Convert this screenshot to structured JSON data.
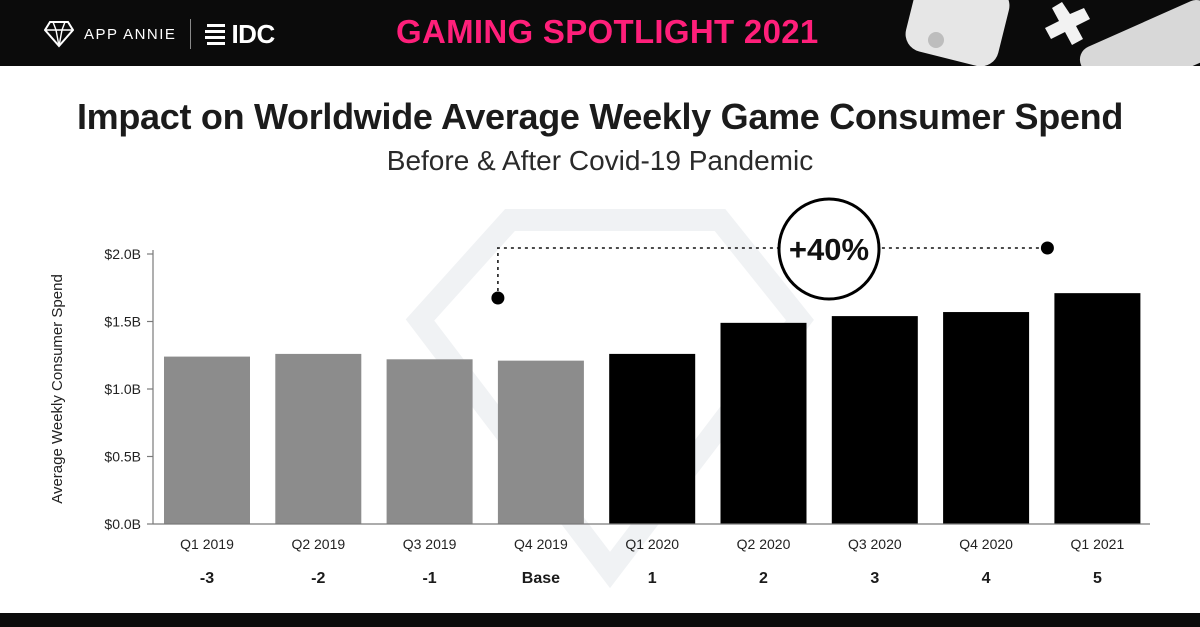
{
  "header": {
    "brand": "APP ANNIE",
    "partner": "IDC",
    "banner": "GAMING SPOTLIGHT 2021",
    "accent_color": "#ff1f7a"
  },
  "chart_data": {
    "type": "bar",
    "title": "Impact on Worldwide Average Weekly Game Consumer Spend",
    "subtitle": "Before & After Covid-19 Pandemic",
    "ylabel": "Average Weekly Consumer Spend",
    "ylim": [
      0,
      2.0
    ],
    "yticks": [
      {
        "value": 0.0,
        "label": "$0.0B"
      },
      {
        "value": 0.5,
        "label": "$0.5B"
      },
      {
        "value": 1.0,
        "label": "$1.0B"
      },
      {
        "value": 1.5,
        "label": "$1.5B"
      },
      {
        "value": 2.0,
        "label": "$2.0B"
      }
    ],
    "categories": [
      "Q1 2019",
      "Q2 2019",
      "Q3 2019",
      "Q4 2019",
      "Q1 2020",
      "Q2 2020",
      "Q3 2020",
      "Q4 2020",
      "Q1 2021"
    ],
    "index_labels": [
      "-3",
      "-2",
      "-1",
      "Base",
      "1",
      "2",
      "3",
      "4",
      "5"
    ],
    "values": [
      1.24,
      1.26,
      1.22,
      1.21,
      1.26,
      1.49,
      1.54,
      1.57,
      1.71
    ],
    "period": [
      "before",
      "before",
      "before",
      "before",
      "after",
      "after",
      "after",
      "after",
      "after"
    ],
    "colors": {
      "before": "#8c8c8c",
      "after": "#000000"
    },
    "annotation": {
      "text": "+40%",
      "from_category": "Q4 2019",
      "to_category": "Q1 2021"
    }
  }
}
